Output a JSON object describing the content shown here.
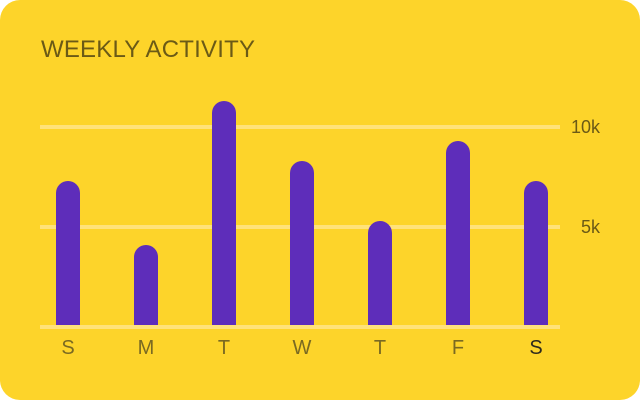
{
  "card": {
    "title": "WEEKLY ACTIVITY"
  },
  "colors": {
    "background": "#FDD42A",
    "bar": "#5E2DBA",
    "gridline": "#FFE27A",
    "text": "#6B5A16",
    "active_label": "#2E2A1E"
  },
  "chart_data": {
    "type": "bar",
    "title": "WEEKLY ACTIVITY",
    "categories": [
      "S",
      "M",
      "T",
      "W",
      "T",
      "F",
      "S"
    ],
    "values": [
      7300,
      4100,
      11300,
      8300,
      5300,
      9300,
      7300
    ],
    "ylim": [
      0,
      12000
    ],
    "y_ticks": [
      {
        "value": 5000,
        "label": "5k"
      },
      {
        "value": 10000,
        "label": "10k"
      }
    ],
    "active_category_index": 6,
    "grid": true,
    "y_axis_side": "right"
  }
}
